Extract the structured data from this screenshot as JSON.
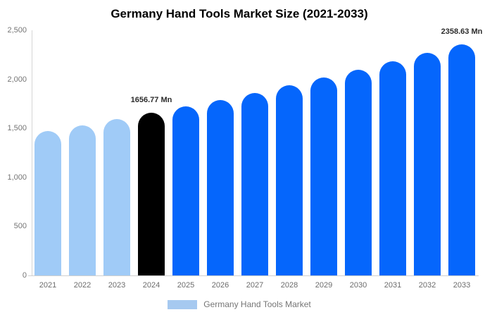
{
  "title": "Germany Hand Tools Market Size (2021-2033)",
  "legend": {
    "label": "Germany Hand Tools Market",
    "swatch_color": "#a6c9f0"
  },
  "colors": {
    "historical_bar": "#a0cbf7",
    "base_year_bar": "#000000",
    "forecast_bar": "#0566fc",
    "axis_line": "#d6d6d6",
    "muted_text": "#757575",
    "label_text": "#2b2b2b"
  },
  "chart_data": {
    "type": "bar",
    "title": "Germany Hand Tools Market Size (2021-2033)",
    "xlabel": "",
    "ylabel": "",
    "categories": [
      "2021",
      "2022",
      "2023",
      "2024",
      "2025",
      "2026",
      "2027",
      "2028",
      "2029",
      "2030",
      "2031",
      "2032",
      "2033"
    ],
    "values": [
      1473,
      1532,
      1593,
      1656.77,
      1723,
      1792,
      1864,
      1938,
      2016,
      2097,
      2181,
      2268,
      2358.63
    ],
    "point_colors": [
      "#a0cbf7",
      "#a0cbf7",
      "#a0cbf7",
      "#000000",
      "#0566fc",
      "#0566fc",
      "#0566fc",
      "#0566fc",
      "#0566fc",
      "#0566fc",
      "#0566fc",
      "#0566fc",
      "#0566fc"
    ],
    "annotations": [
      {
        "category": "2024",
        "text": "1656.77 Mn"
      },
      {
        "category": "2033",
        "text": "2358.63 Mn"
      }
    ],
    "ylim": [
      0,
      2500
    ],
    "y_ticks": [
      {
        "value": 0,
        "label": "0"
      },
      {
        "value": 500,
        "label": "500"
      },
      {
        "value": 1000,
        "label": "1,000"
      },
      {
        "value": 1500,
        "label": "1,500"
      },
      {
        "value": 2000,
        "label": "2,000"
      },
      {
        "value": 2500,
        "label": "2,500"
      }
    ],
    "grid": false,
    "legend_position": "bottom"
  }
}
